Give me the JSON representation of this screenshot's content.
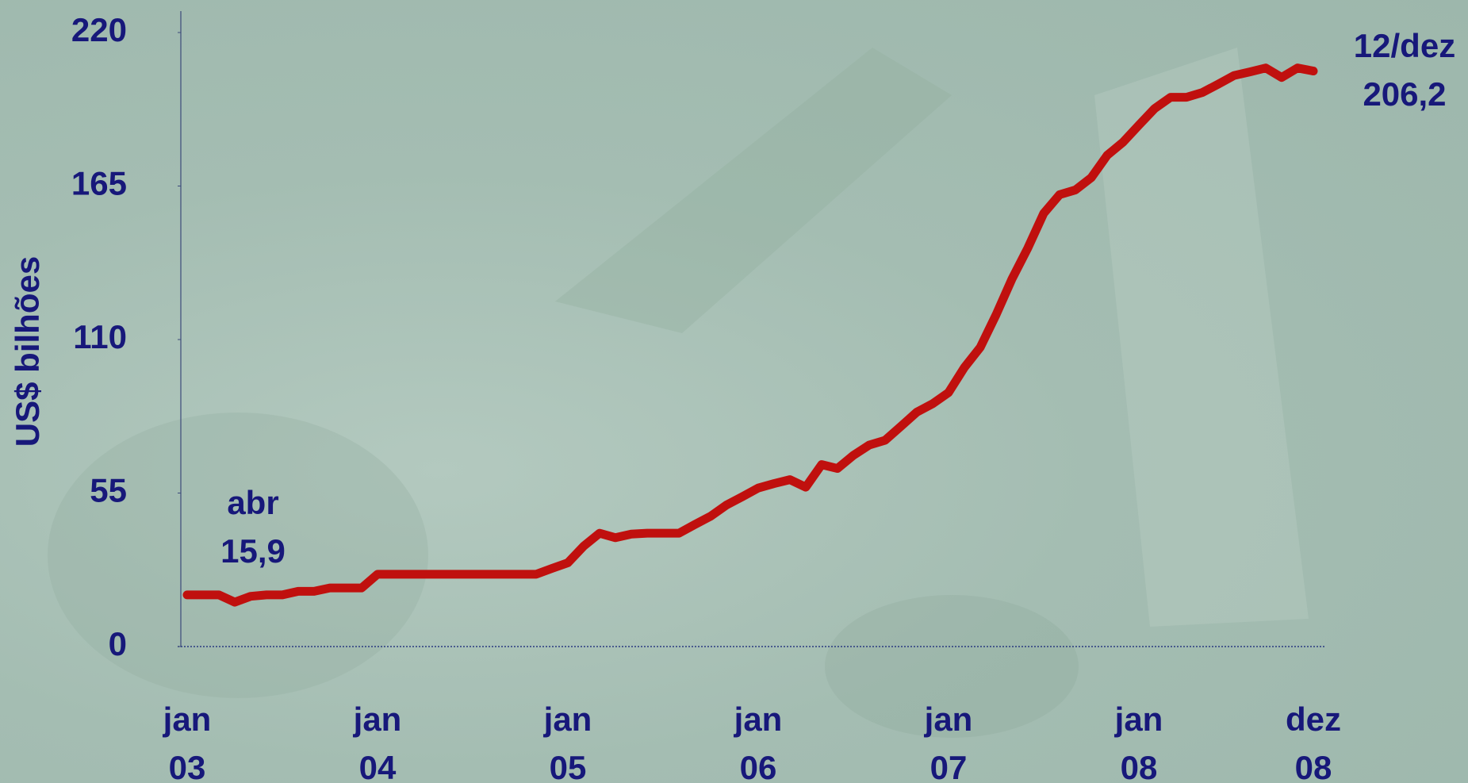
{
  "chart_data": {
    "type": "line",
    "y_label": "US$ bilhões",
    "categories": [
      "jan\n03",
      null,
      null,
      null,
      null,
      null,
      null,
      null,
      null,
      null,
      null,
      null,
      "jan\n04",
      null,
      null,
      null,
      null,
      null,
      null,
      null,
      null,
      null,
      null,
      null,
      "jan\n05",
      null,
      null,
      null,
      null,
      null,
      null,
      null,
      null,
      null,
      null,
      null,
      "jan\n06",
      null,
      null,
      null,
      null,
      null,
      null,
      null,
      null,
      null,
      null,
      null,
      "jan\n07",
      null,
      null,
      null,
      null,
      null,
      null,
      null,
      null,
      null,
      null,
      null,
      "jan\n08",
      null,
      null,
      null,
      null,
      null,
      null,
      null,
      null,
      null,
      null,
      "dez\n08"
    ],
    "values": [
      18.5,
      18.5,
      18.5,
      15.9,
      18,
      18.5,
      18.5,
      19.8,
      19.8,
      21,
      21,
      21,
      25.9,
      25.9,
      25.9,
      25.9,
      25.9,
      25.9,
      25.9,
      25.9,
      25.9,
      25.9,
      25.9,
      28,
      30,
      36,
      40.6,
      39,
      40.3,
      40.6,
      40.6,
      40.6,
      43.7,
      46.7,
      50.7,
      53.7,
      56.8,
      58.4,
      59.8,
      57.1,
      65.2,
      63.8,
      68.5,
      72.2,
      73.9,
      78.9,
      84,
      87,
      91,
      100,
      107.2,
      118.9,
      131.7,
      142.8,
      155.2,
      161.9,
      163.6,
      168,
      176,
      180.7,
      186.8,
      192.8,
      196.8,
      196.8,
      198.5,
      201.5,
      204.6,
      205.9,
      207.3,
      203.9,
      207.3,
      206.2
    ],
    "color": "#c0100e",
    "ylim": [
      0,
      220
    ],
    "yticks": [
      0,
      55,
      110,
      165,
      220
    ],
    "annotations": [
      "abr\n15,9",
      "12/dez\n206,2"
    ]
  }
}
